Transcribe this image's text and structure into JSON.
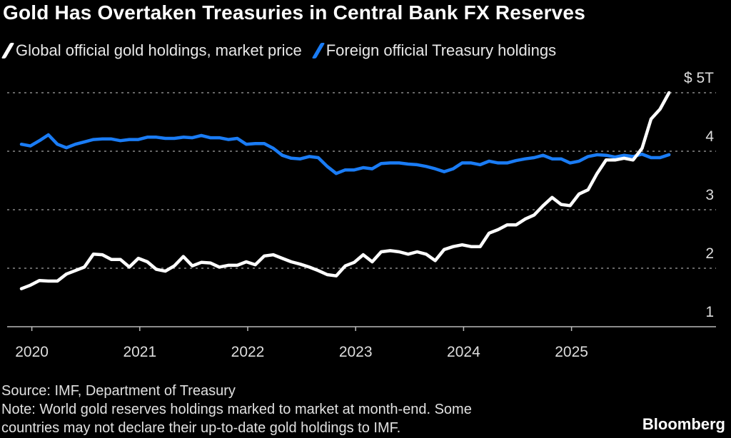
{
  "chart_data": {
    "type": "line",
    "title": "Gold Has Overtaken Treasuries in Central Bank FX Reserves",
    "x_start": "2019-12",
    "x_step": "month",
    "x_tick_labels": [
      "2020",
      "2021",
      "2022",
      "2023",
      "2024",
      "2025"
    ],
    "y_tick_labels": [
      "1",
      "2",
      "3",
      "4",
      "$ 5T"
    ],
    "y_ticks": [
      1,
      2,
      3,
      4,
      5
    ],
    "ylim": [
      1,
      5
    ],
    "ylabel": "",
    "xlabel": "",
    "grid": true,
    "legend_position": "top-left",
    "series": [
      {
        "name": "Global official gold holdings, market price",
        "color": "#ffffff",
        "values": [
          1.65,
          1.71,
          1.79,
          1.78,
          1.78,
          1.9,
          1.96,
          2.02,
          2.24,
          2.23,
          2.15,
          2.15,
          2.02,
          2.17,
          2.11,
          1.98,
          1.95,
          2.04,
          2.2,
          2.04,
          2.1,
          2.09,
          2.02,
          2.05,
          2.05,
          2.11,
          2.06,
          2.21,
          2.23,
          2.17,
          2.11,
          2.07,
          2.02,
          1.96,
          1.89,
          1.87,
          2.04,
          2.1,
          2.23,
          2.11,
          2.28,
          2.3,
          2.28,
          2.24,
          2.28,
          2.24,
          2.13,
          2.32,
          2.37,
          2.4,
          2.37,
          2.37,
          2.6,
          2.66,
          2.74,
          2.74,
          2.84,
          2.91,
          3.07,
          3.21,
          3.09,
          3.07,
          3.27,
          3.34,
          3.62,
          3.85,
          3.85,
          3.88,
          3.85,
          4.05,
          4.55,
          4.72,
          5.0
        ]
      },
      {
        "name": "Foreign official Treasury holdings",
        "color": "#1a7cf5",
        "values": [
          4.12,
          4.09,
          4.18,
          4.28,
          4.12,
          4.06,
          4.12,
          4.16,
          4.2,
          4.21,
          4.21,
          4.18,
          4.2,
          4.2,
          4.24,
          4.24,
          4.22,
          4.22,
          4.24,
          4.23,
          4.27,
          4.23,
          4.23,
          4.2,
          4.22,
          4.12,
          4.13,
          4.13,
          4.05,
          3.93,
          3.88,
          3.87,
          3.91,
          3.89,
          3.74,
          3.62,
          3.68,
          3.68,
          3.72,
          3.7,
          3.79,
          3.8,
          3.8,
          3.78,
          3.77,
          3.74,
          3.7,
          3.65,
          3.7,
          3.8,
          3.8,
          3.77,
          3.83,
          3.8,
          3.8,
          3.84,
          3.87,
          3.89,
          3.93,
          3.87,
          3.87,
          3.8,
          3.83,
          3.91,
          3.94,
          3.93,
          3.9,
          3.93,
          3.91,
          3.95,
          3.89,
          3.89,
          3.94
        ]
      }
    ]
  },
  "footer": {
    "source": "Source: IMF, Department of Treasury",
    "note_line1": "Note: World gold reserves holdings marked to market at month-end. Some",
    "note_line2": "countries may not declare their up-to-date gold holdings to IMF.",
    "logo": "Bloomberg"
  }
}
